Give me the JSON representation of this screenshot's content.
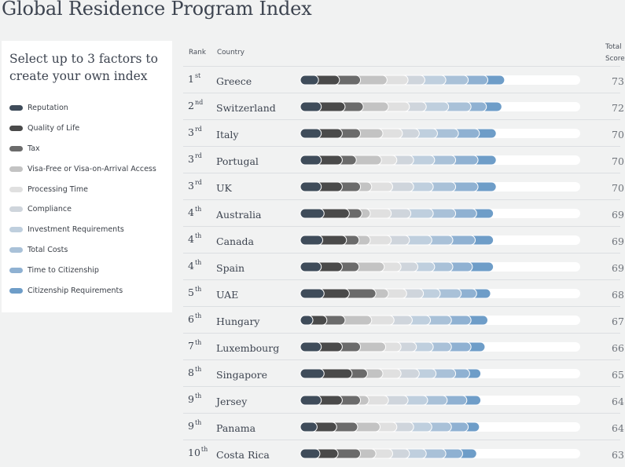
{
  "page": {
    "title": "Global Residence Program Index"
  },
  "panel": {
    "heading": "Select up to 3 factors to create your own index",
    "factors": [
      {
        "label": "Reputation",
        "color": "#3f4c5a"
      },
      {
        "label": "Quality of Life",
        "color": "#4a4a4a"
      },
      {
        "label": "Tax",
        "color": "#6b6b6b"
      },
      {
        "label": "Visa-Free or Visa-on-Arrival Access",
        "color": "#c3c3c3"
      },
      {
        "label": "Processing Time",
        "color": "#e0e0e0"
      },
      {
        "label": "Compliance",
        "color": "#cfd5dc"
      },
      {
        "label": "Investment Requirements",
        "color": "#bfcfde"
      },
      {
        "label": "Total Costs",
        "color": "#a9c1d8"
      },
      {
        "label": "Time to Citizenship",
        "color": "#8fb1d2"
      },
      {
        "label": "Citizenship Requirements",
        "color": "#6e9dc8"
      }
    ]
  },
  "table": {
    "headers": {
      "rank": "Rank",
      "country": "Country",
      "score_line1": "Total",
      "score_line2": "Score"
    }
  },
  "chart_data": {
    "type": "bar",
    "stacked": true,
    "title": "Global Residence Program Index",
    "max_score": 100,
    "series_names": [
      "Reputation",
      "Quality of Life",
      "Tax",
      "Visa-Free or Visa-on-Arrival Access",
      "Processing Time",
      "Compliance",
      "Investment Requirements",
      "Total Costs",
      "Time to Citizenship",
      "Citizenship Requirements"
    ],
    "rows": [
      {
        "rank": "1",
        "suffix": "st",
        "country": "Greece",
        "score": "73",
        "segments": [
          6.5,
          7.5,
          7.5,
          9.5,
          7.5,
          6,
          7.5,
          8,
          7,
          6
        ]
      },
      {
        "rank": "2",
        "suffix": "nd",
        "country": "Switzerland",
        "score": "72",
        "segments": [
          7.5,
          8.5,
          6.5,
          9,
          7.5,
          6,
          8,
          8,
          5.5,
          5.5
        ]
      },
      {
        "rank": "3",
        "suffix": "rd",
        "country": "Italy",
        "score": "70",
        "segments": [
          7.5,
          7.5,
          6.5,
          8,
          7,
          6,
          6.5,
          7.5,
          7.5,
          6
        ]
      },
      {
        "rank": "3",
        "suffix": "rd",
        "country": "Portugal",
        "score": "70",
        "segments": [
          7.5,
          7.5,
          5,
          9,
          5.5,
          6,
          7.5,
          7.5,
          8,
          6.5
        ]
      },
      {
        "rank": "3",
        "suffix": "rd",
        "country": "UK",
        "score": "70",
        "segments": [
          7.5,
          7.5,
          6.5,
          4,
          7.5,
          7.5,
          7,
          8,
          8,
          6.5
        ]
      },
      {
        "rank": "4",
        "suffix": "th",
        "country": "Australia",
        "score": "69",
        "segments": [
          8.5,
          9,
          4.5,
          3,
          7.5,
          7,
          8,
          8,
          7.5,
          6
        ]
      },
      {
        "rank": "4",
        "suffix": "th",
        "country": "Canada",
        "score": "69",
        "segments": [
          8,
          8.5,
          4.5,
          4,
          7.5,
          6.5,
          8,
          7.5,
          8,
          6.5
        ]
      },
      {
        "rank": "4",
        "suffix": "th",
        "country": "Spain",
        "score": "69",
        "segments": [
          7.5,
          7.5,
          6,
          9,
          6,
          6,
          6,
          6.5,
          7,
          7.5
        ]
      },
      {
        "rank": "5",
        "suffix": "th",
        "country": "UAE",
        "score": "68",
        "segments": [
          8.5,
          9,
          9.5,
          4.5,
          6.5,
          6,
          6,
          7.5,
          5.5,
          5
        ]
      },
      {
        "rank": "6",
        "suffix": "th",
        "country": "Hungary",
        "score": "67",
        "segments": [
          4.5,
          5,
          6.5,
          9.5,
          8,
          6.5,
          6.5,
          7.5,
          7,
          6
        ]
      },
      {
        "rank": "7",
        "suffix": "th",
        "country": "Luxembourg",
        "score": "66",
        "segments": [
          7.5,
          7.5,
          6.5,
          9,
          5.5,
          5.5,
          6,
          6.5,
          7,
          5
        ]
      },
      {
        "rank": "8",
        "suffix": "th",
        "country": "Singapore",
        "score": "65",
        "segments": [
          8.5,
          10,
          5.5,
          5.5,
          6.5,
          6.5,
          6,
          7,
          5,
          4
        ]
      },
      {
        "rank": "9",
        "suffix": "th",
        "country": "Jersey",
        "score": "64",
        "segments": [
          7.5,
          7.5,
          6.5,
          3,
          7,
          7,
          7,
          7,
          7,
          5
        ]
      },
      {
        "rank": "9",
        "suffix": "th",
        "country": "Panama",
        "score": "64",
        "segments": [
          6,
          7,
          7.5,
          8,
          6,
          6,
          6.5,
          7,
          6,
          4
        ]
      },
      {
        "rank": "10",
        "suffix": "th",
        "country": "Costa Rica",
        "score": "63",
        "segments": [
          7,
          6.5,
          8,
          5.5,
          6,
          6,
          6,
          7,
          6,
          5
        ]
      }
    ]
  }
}
